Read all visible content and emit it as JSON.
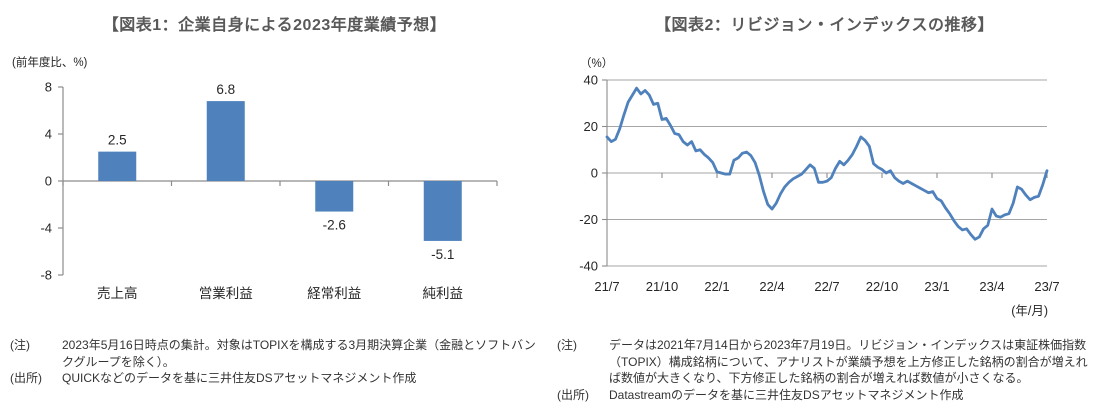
{
  "figure1": {
    "title": "【図表1：企業自身による2023年度業績予想】",
    "axis_unit_label": "(前年度比、%)",
    "note_label": "(注)",
    "note_text": "2023年5月16日時点の集計。対象はTOPIXを構成する3月期決算企業（金融とソフトバンクグループを除く）。",
    "source_label": "(出所)",
    "source_text": "QUICKなどのデータを基に三井住友DSアセットマネジメント作成"
  },
  "figure2": {
    "title": "【図表2：リビジョン・インデックスの推移】",
    "axis_unit_label": "（%）",
    "x_axis_unit_label": "(年/月)",
    "note_label": "(注)",
    "note_text": "データは2021年7月14日から2023年7月19日。リビジョン・インデックスは東証株価指数（TOPIX）構成銘柄について、アナリストが業績予想を上方修正した銘柄の割合が増えれば数値が大きくなり、下方修正した銘柄の割合が増えれば数値が小さくなる。",
    "source_label": "(出所)",
    "source_text": "Datastreamのデータを基に三井住友DSアセットマネジメント作成"
  },
  "colors": {
    "series_blue": "#4F81BD",
    "grid_gray": "#A6A6A6",
    "axis_gray": "#8C8C8C",
    "title_gray": "#595959",
    "text_dark": "#262626"
  },
  "chart_data": [
    {
      "type": "bar",
      "title": "図表1：企業自身による2023年度業績予想",
      "ylabel": "(前年度比、%)",
      "categories": [
        "売上高",
        "営業利益",
        "経常利益",
        "純利益"
      ],
      "values": [
        2.5,
        6.8,
        -2.6,
        -5.1
      ],
      "data_labels": [
        "2.5",
        "6.8",
        "-2.6",
        "-5.1"
      ],
      "ylim": [
        -8,
        8
      ],
      "yticks": [
        8,
        4,
        0,
        -4,
        -8
      ],
      "grid": false,
      "legend": "none"
    },
    {
      "type": "line",
      "title": "図表2：リビジョン・インデックスの推移",
      "ylabel": "（%）",
      "xlabel": "(年/月)",
      "ylim": [
        -40,
        40
      ],
      "yticks": [
        40,
        20,
        0,
        -20,
        -40
      ],
      "xtick_labels": [
        "21/7",
        "21/10",
        "22/1",
        "22/4",
        "22/7",
        "22/10",
        "23/1",
        "23/4",
        "23/7"
      ],
      "x_start": "21/7 (2021年7月14日)",
      "x_end": "23/7 (2023年7月19日)",
      "frequency": "weekly",
      "grid": true,
      "legend": "none",
      "values": [
        15.5,
        13.5,
        14.5,
        19,
        25,
        30.5,
        33.5,
        36.5,
        34,
        35.5,
        33.5,
        29.5,
        30,
        23,
        23.5,
        20.5,
        17,
        16.5,
        13.5,
        12,
        13.5,
        9.5,
        10,
        8,
        6.5,
        4.5,
        0.5,
        0,
        -0.5,
        -0.5,
        5.5,
        6.5,
        8.5,
        9,
        7.5,
        4.5,
        -1,
        -8,
        -13.5,
        -15.5,
        -13,
        -9,
        -6,
        -4,
        -2.5,
        -1.5,
        -0.5,
        1.5,
        3.5,
        2,
        -4,
        -4,
        -3.5,
        -2,
        2,
        5,
        3.5,
        5.5,
        8,
        11.5,
        15.5,
        14,
        11.5,
        4,
        2.5,
        1.5,
        0,
        1,
        -2,
        -3.5,
        -4.5,
        -3.5,
        -4.5,
        -5.5,
        -6.5,
        -7.5,
        -8.5,
        -8,
        -11,
        -12,
        -15,
        -17.5,
        -20.5,
        -23,
        -24.5,
        -24,
        -26.5,
        -28.5,
        -27.5,
        -24,
        -22.5,
        -15.5,
        -18.5,
        -19,
        -18,
        -17.5,
        -13,
        -6,
        -7,
        -9.5,
        -11.5,
        -10.5,
        -10,
        -5,
        1
      ]
    }
  ]
}
